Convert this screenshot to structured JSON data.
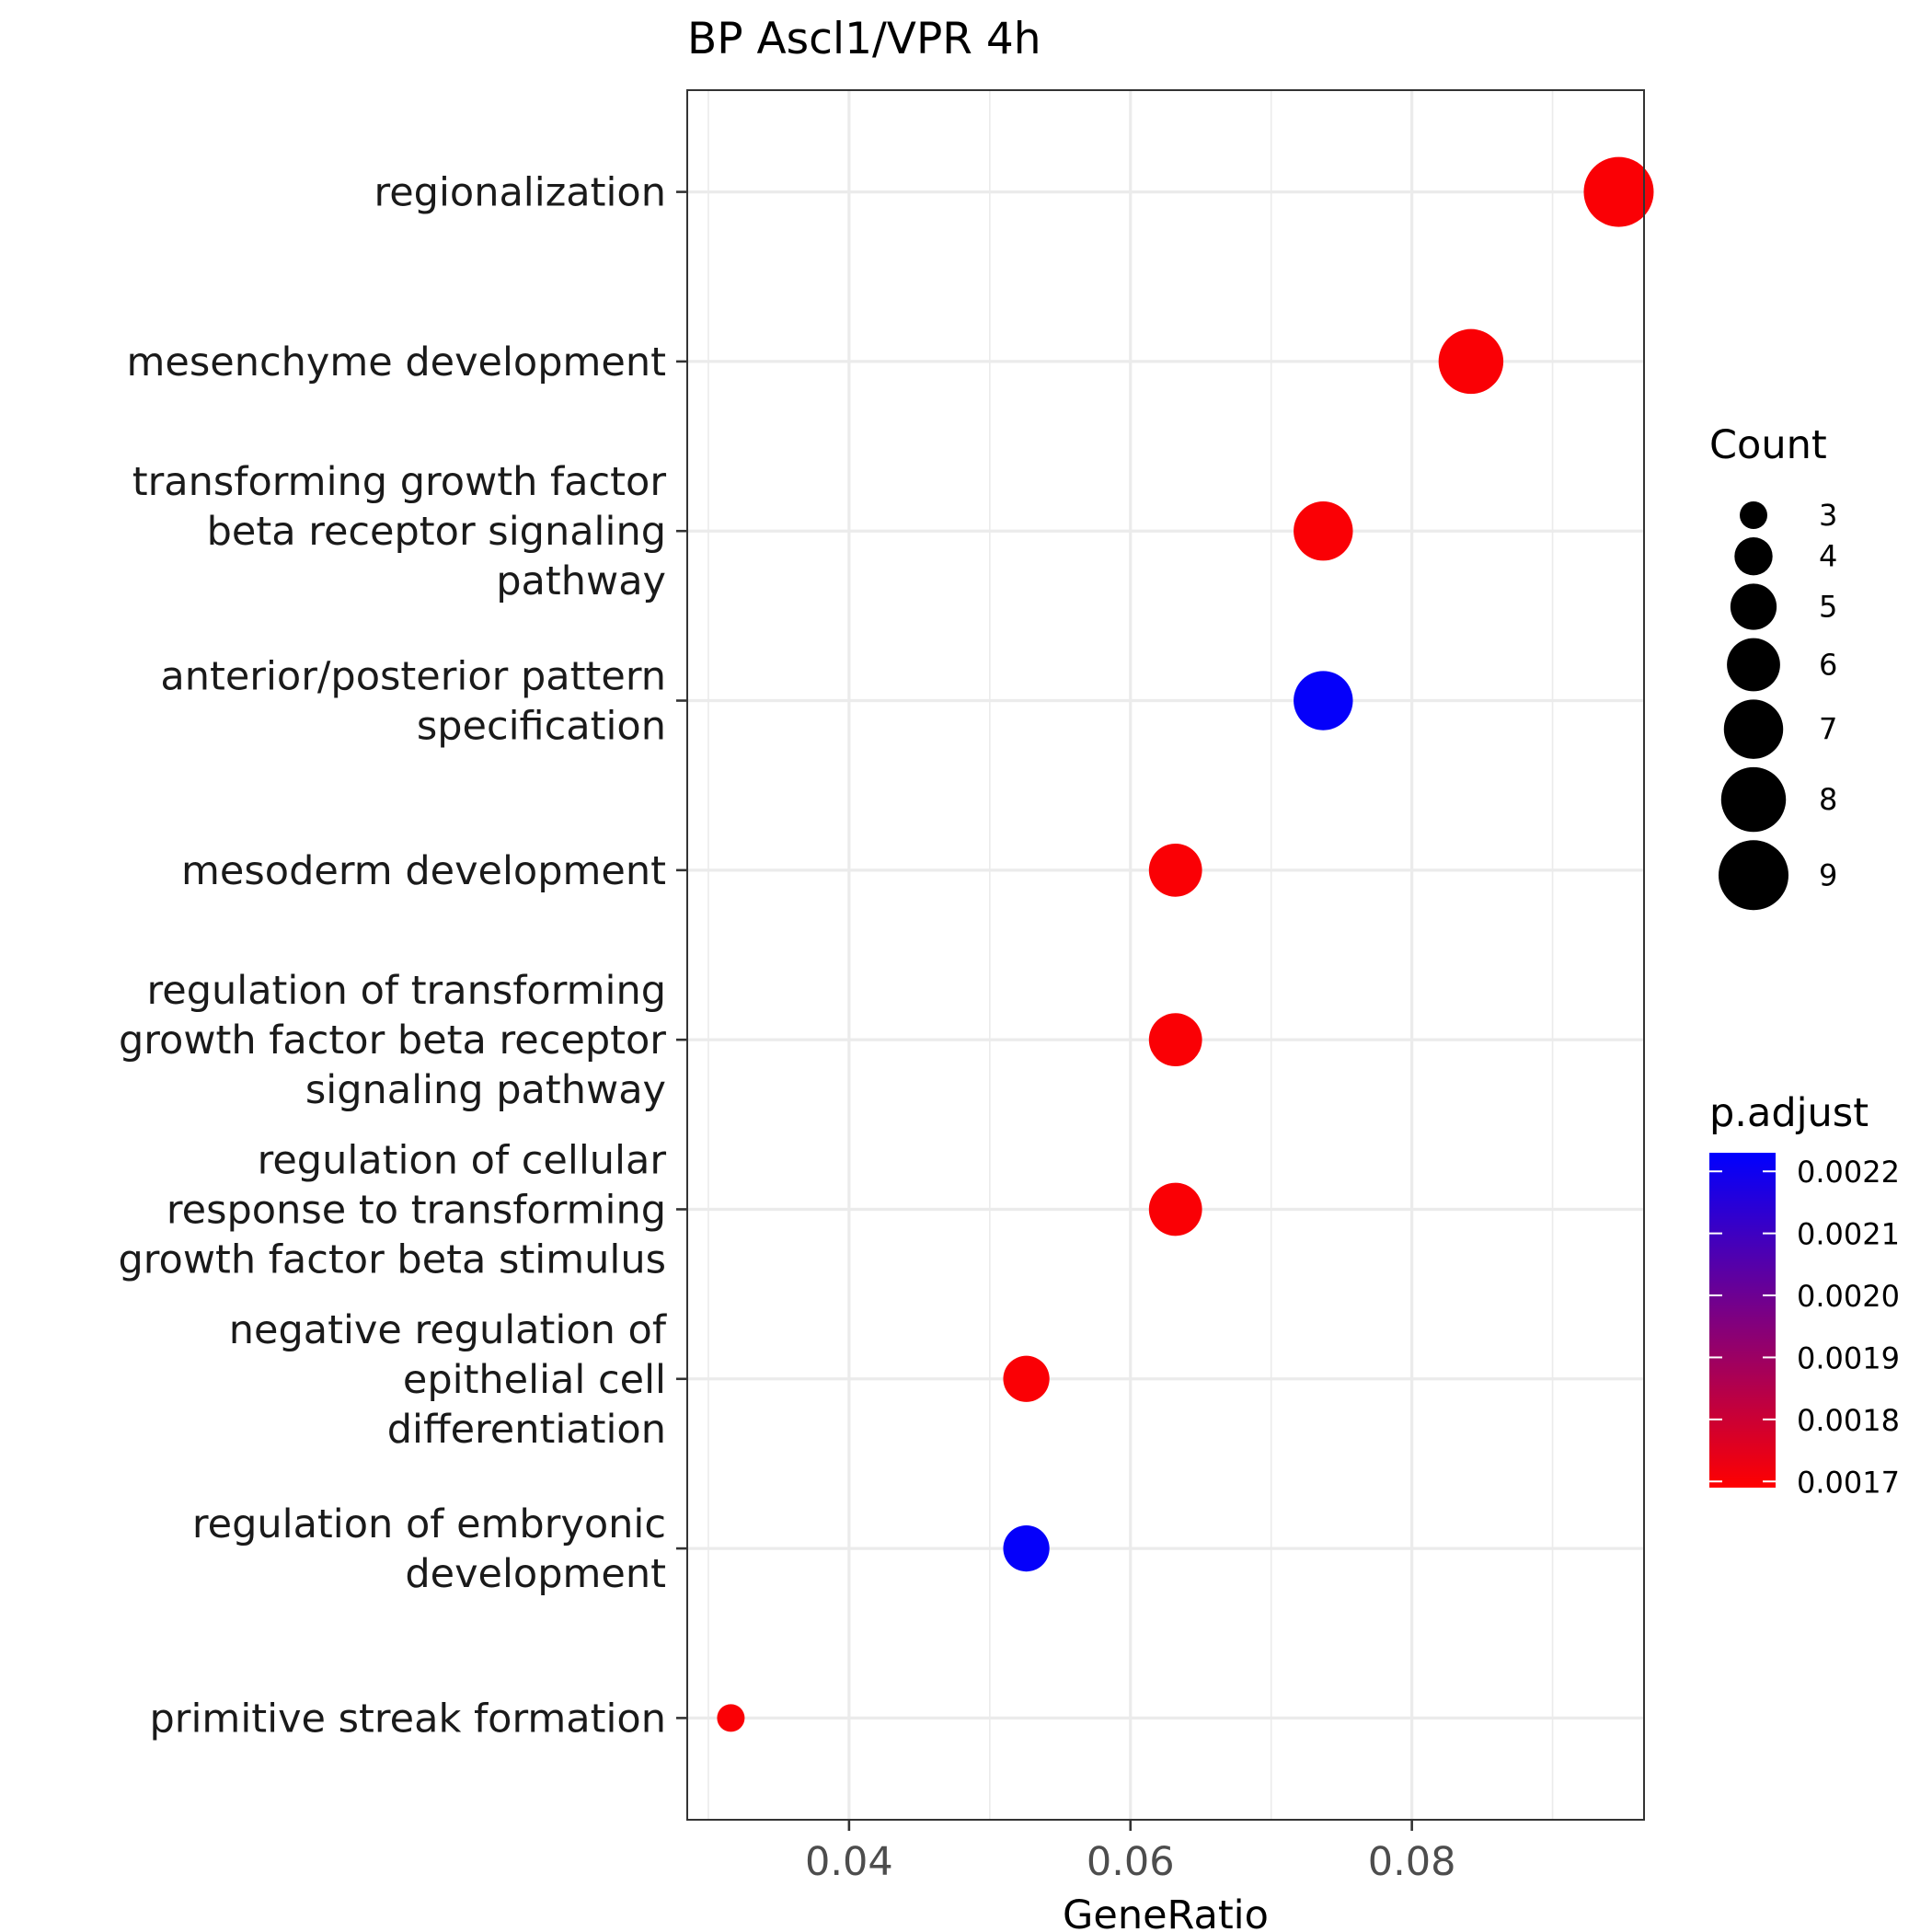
{
  "chart_data": {
    "type": "scatter",
    "title": "BP Ascl1/VPR 4h",
    "xlabel": "GeneRatio",
    "ylabel": "",
    "xlim": [
      0.0285,
      0.0965
    ],
    "x_ticks": [
      "0.04",
      "0.06",
      "0.08"
    ],
    "x_tick_values": [
      0.04,
      0.06,
      0.08
    ],
    "x_minor_values": [
      0.03,
      0.05,
      0.07,
      0.09
    ],
    "grid": true,
    "categories": [
      "regionalization",
      "mesenchyme development",
      "transforming growth factor beta receptor signaling pathway",
      "anterior/posterior pattern specification",
      "mesoderm development",
      "regulation of transforming growth factor beta receptor signaling pathway",
      "regulation of cellular response to transforming growth factor beta stimulus",
      "negative regulation of epithelial cell differentiation",
      "regulation of embryonic development",
      "primitive streak formation"
    ],
    "category_lines": [
      [
        "regionalization"
      ],
      [
        "mesenchyme development"
      ],
      [
        "transforming growth factor",
        "beta receptor signaling",
        "pathway"
      ],
      [
        "anterior/posterior pattern",
        "specification"
      ],
      [
        "mesoderm development"
      ],
      [
        "regulation of transforming",
        "growth factor beta receptor",
        "signaling pathway"
      ],
      [
        "regulation of cellular",
        "response to transforming",
        "growth factor beta stimulus"
      ],
      [
        "negative regulation of",
        "epithelial cell",
        "differentiation"
      ],
      [
        "regulation of embryonic",
        "development"
      ],
      [
        "primitive streak formation"
      ]
    ],
    "points": [
      {
        "category": "regionalization",
        "gene_ratio": 0.0947,
        "count": 9,
        "p_adjust": 0.0017
      },
      {
        "category": "mesenchyme development",
        "gene_ratio": 0.0842,
        "count": 8,
        "p_adjust": 0.0017
      },
      {
        "category": "transforming growth factor beta receptor signaling pathway",
        "gene_ratio": 0.0737,
        "count": 7,
        "p_adjust": 0.0017
      },
      {
        "category": "anterior/posterior pattern specification",
        "gene_ratio": 0.0737,
        "count": 7,
        "p_adjust": 0.00222
      },
      {
        "category": "mesoderm development",
        "gene_ratio": 0.0632,
        "count": 6,
        "p_adjust": 0.0017
      },
      {
        "category": "regulation of transforming growth factor beta receptor signaling pathway",
        "gene_ratio": 0.0632,
        "count": 6,
        "p_adjust": 0.0017
      },
      {
        "category": "regulation of cellular response to transforming growth factor beta stimulus",
        "gene_ratio": 0.0632,
        "count": 6,
        "p_adjust": 0.0017
      },
      {
        "category": "negative regulation of epithelial cell differentiation",
        "gene_ratio": 0.0526,
        "count": 5,
        "p_adjust": 0.0017
      },
      {
        "category": "regulation of embryonic development",
        "gene_ratio": 0.0526,
        "count": 5,
        "p_adjust": 0.00222
      },
      {
        "category": "primitive streak formation",
        "gene_ratio": 0.0316,
        "count": 3,
        "p_adjust": 0.0017
      }
    ],
    "size_legend": {
      "title": "Count",
      "values": [
        3,
        4,
        5,
        6,
        7,
        8,
        9
      ],
      "labels": [
        "3",
        "4",
        "5",
        "6",
        "7",
        "8",
        "9"
      ]
    },
    "color_legend": {
      "title": "p.adjust",
      "low_color": "#ff0000",
      "high_color": "#0000ff",
      "range": [
        0.00169,
        0.00223
      ],
      "tick_values": [
        0.0017,
        0.0018,
        0.0019,
        0.002,
        0.0021,
        0.0022
      ],
      "tick_labels": [
        "0.0017",
        "0.0018",
        "0.0019",
        "0.0020",
        "0.0021",
        "0.0022"
      ]
    },
    "legend_position": "right"
  }
}
